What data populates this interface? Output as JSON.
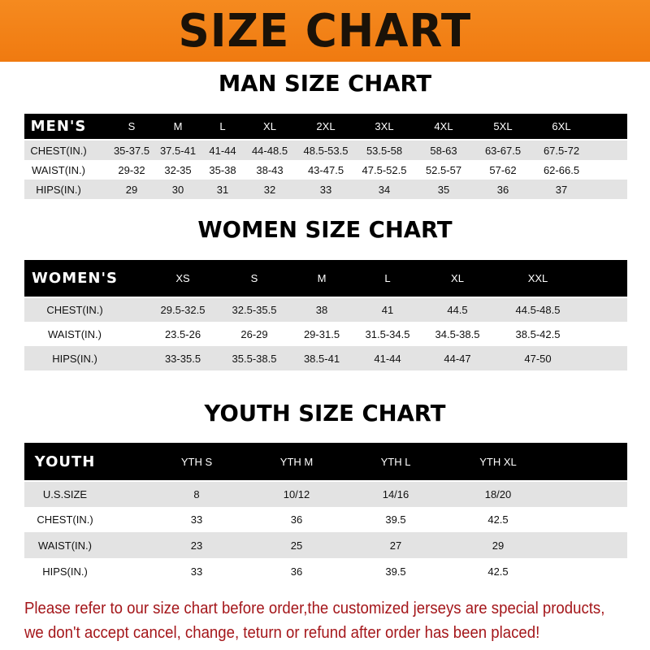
{
  "banner": {
    "title": "SIZE CHART",
    "color": "#f58a1f"
  },
  "men": {
    "title": "MAN SIZE CHART",
    "header": [
      "MEN'S",
      "S",
      "M",
      "L",
      "XL",
      "2XL",
      "3XL",
      "4XL",
      "5XL",
      "6XL"
    ],
    "rows": [
      [
        "CHEST(IN.)",
        "35-37.5",
        "37.5-41",
        "41-44",
        "44-48.5",
        "48.5-53.5",
        "53.5-58",
        "58-63",
        "63-67.5",
        "67.5-72"
      ],
      [
        "WAIST(IN.)",
        "29-32",
        "32-35",
        "35-38",
        "38-43",
        "43-47.5",
        "47.5-52.5",
        "52.5-57",
        "57-62",
        "62-66.5"
      ],
      [
        "HIPS(IN.)",
        "29",
        "30",
        "31",
        "32",
        "33",
        "34",
        "35",
        "36",
        "37"
      ]
    ]
  },
  "women": {
    "title": "WOMEN SIZE CHART",
    "header": [
      "WOMEN'S",
      "XS",
      "S",
      "M",
      "L",
      "XL",
      "XXL"
    ],
    "rows": [
      [
        "CHEST(IN.)",
        "29.5-32.5",
        "32.5-35.5",
        "38",
        "41",
        "44.5",
        "44.5-48.5"
      ],
      [
        "WAIST(IN.)",
        "23.5-26",
        "26-29",
        "29-31.5",
        "31.5-34.5",
        "34.5-38.5",
        "38.5-42.5"
      ],
      [
        "HIPS(IN.)",
        "33-35.5",
        "35.5-38.5",
        "38.5-41",
        "41-44",
        "44-47",
        "47-50"
      ]
    ]
  },
  "youth": {
    "title": "YOUTH SIZE CHART",
    "header": [
      "YOUTH",
      "YTH S",
      "YTH M",
      "YTH L",
      "YTH XL"
    ],
    "rows": [
      [
        "U.S.SIZE",
        "8",
        "10/12",
        "14/16",
        "18/20"
      ],
      [
        "CHEST(IN.)",
        "33",
        "36",
        "39.5",
        "42.5"
      ],
      [
        "WAIST(IN.)",
        "23",
        "25",
        "27",
        "29"
      ],
      [
        "HIPS(IN.)",
        "33",
        "36",
        "39.5",
        "42.5"
      ]
    ]
  },
  "note": {
    "line1": "Please refer to our size chart before order,the customized jerseys are special products,",
    "line2": "we don't accept cancel, change, teturn or refund after order has been placed!",
    "color": "#a4161a"
  }
}
